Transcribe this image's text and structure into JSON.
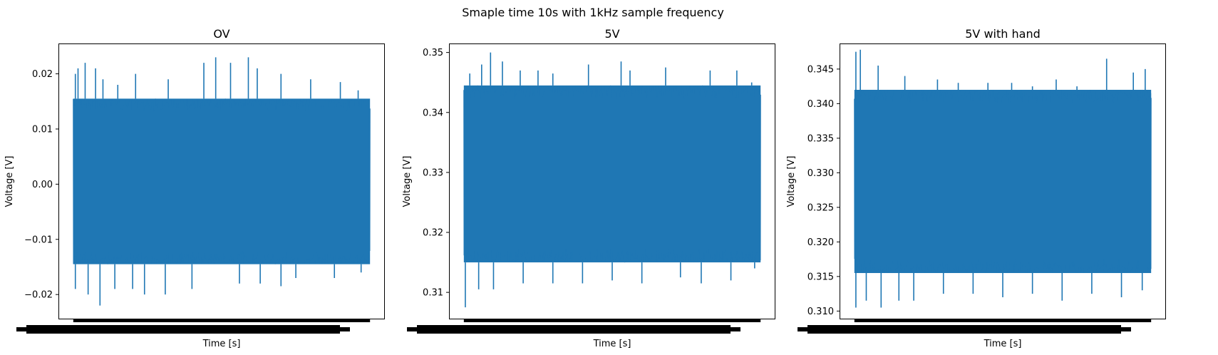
{
  "figure": {
    "suptitle": "Smaple time 10s with 1kHz sample frequency"
  },
  "chart_data": [
    {
      "type": "line",
      "title": "OV",
      "xlabel": "Time [s]",
      "ylabel": "Voltage [V]",
      "color": "#1f77b4",
      "xlim": [
        -0.5,
        10.5
      ],
      "x_range": [
        0,
        10
      ],
      "ylim": [
        -0.0245,
        0.0255
      ],
      "yticks": [
        -0.02,
        -0.01,
        0.0,
        0.01,
        0.02
      ],
      "ytick_labels": [
        "−0.02",
        "−0.01",
        "0.00",
        "0.01",
        "0.02"
      ],
      "band": [
        -0.0145,
        0.0155
      ],
      "spikes_up": [
        [
          0.07,
          0.02
        ],
        [
          0.16,
          0.021
        ],
        [
          0.4,
          0.022
        ],
        [
          0.75,
          0.021
        ],
        [
          1.0,
          0.019
        ],
        [
          1.5,
          0.018
        ],
        [
          2.1,
          0.02
        ],
        [
          3.2,
          0.019
        ],
        [
          4.4,
          0.022
        ],
        [
          4.8,
          0.023
        ],
        [
          5.3,
          0.022
        ],
        [
          5.9,
          0.023
        ],
        [
          6.2,
          0.021
        ],
        [
          7.0,
          0.02
        ],
        [
          8.0,
          0.019
        ],
        [
          9.0,
          0.0185
        ],
        [
          9.6,
          0.017
        ]
      ],
      "spikes_down": [
        [
          0.07,
          -0.019
        ],
        [
          0.5,
          -0.02
        ],
        [
          0.9,
          -0.022
        ],
        [
          1.4,
          -0.019
        ],
        [
          2.0,
          -0.019
        ],
        [
          2.4,
          -0.02
        ],
        [
          3.1,
          -0.02
        ],
        [
          4.0,
          -0.019
        ],
        [
          5.6,
          -0.018
        ],
        [
          6.3,
          -0.018
        ],
        [
          7.0,
          -0.0185
        ],
        [
          7.5,
          -0.017
        ],
        [
          8.8,
          -0.017
        ],
        [
          9.7,
          -0.016
        ]
      ]
    },
    {
      "type": "line",
      "title": "5V",
      "xlabel": "Time [s]",
      "ylabel": "Voltage [V]",
      "color": "#1f77b4",
      "xlim": [
        -0.5,
        10.5
      ],
      "x_range": [
        0,
        10
      ],
      "ylim": [
        0.3055,
        0.3515
      ],
      "yticks": [
        0.31,
        0.32,
        0.33,
        0.34,
        0.35
      ],
      "ytick_labels": [
        "0.31",
        "0.32",
        "0.33",
        "0.34",
        "0.35"
      ],
      "band": [
        0.315,
        0.3445
      ],
      "spikes_up": [
        [
          0.2,
          0.3465
        ],
        [
          0.6,
          0.348
        ],
        [
          0.9,
          0.35
        ],
        [
          1.3,
          0.3485
        ],
        [
          1.9,
          0.347
        ],
        [
          2.5,
          0.347
        ],
        [
          3.0,
          0.3465
        ],
        [
          4.2,
          0.348
        ],
        [
          5.3,
          0.3485
        ],
        [
          5.6,
          0.347
        ],
        [
          6.8,
          0.3475
        ],
        [
          8.3,
          0.347
        ],
        [
          9.2,
          0.347
        ],
        [
          9.7,
          0.345
        ]
      ],
      "spikes_down": [
        [
          0.05,
          0.3075
        ],
        [
          0.5,
          0.3105
        ],
        [
          1.0,
          0.3105
        ],
        [
          2.0,
          0.3115
        ],
        [
          3.0,
          0.3115
        ],
        [
          4.0,
          0.3115
        ],
        [
          5.0,
          0.312
        ],
        [
          6.0,
          0.3115
        ],
        [
          7.3,
          0.3125
        ],
        [
          8.0,
          0.3115
        ],
        [
          9.0,
          0.312
        ],
        [
          9.8,
          0.314
        ]
      ]
    },
    {
      "type": "line",
      "title": "5V with hand",
      "xlabel": "Time [s]",
      "ylabel": "Voltage [V]",
      "color": "#1f77b4",
      "xlim": [
        -0.5,
        10.5
      ],
      "x_range": [
        0,
        10
      ],
      "ylim": [
        0.3088,
        0.3487
      ],
      "yticks": [
        0.31,
        0.315,
        0.32,
        0.325,
        0.33,
        0.335,
        0.34,
        0.345
      ],
      "ytick_labels": [
        "0.310",
        "0.315",
        "0.320",
        "0.325",
        "0.330",
        "0.335",
        "0.340",
        "0.345"
      ],
      "band": [
        0.3155,
        0.342
      ],
      "spikes_up": [
        [
          0.05,
          0.3475
        ],
        [
          0.2,
          0.3478
        ],
        [
          0.8,
          0.3455
        ],
        [
          1.7,
          0.344
        ],
        [
          2.8,
          0.3435
        ],
        [
          3.5,
          0.343
        ],
        [
          4.5,
          0.343
        ],
        [
          5.3,
          0.343
        ],
        [
          6.0,
          0.3425
        ],
        [
          6.8,
          0.3435
        ],
        [
          7.5,
          0.3425
        ],
        [
          8.5,
          0.3465
        ],
        [
          9.4,
          0.3445
        ],
        [
          9.8,
          0.345
        ]
      ],
      "spikes_down": [
        [
          0.05,
          0.3105
        ],
        [
          0.4,
          0.3115
        ],
        [
          0.9,
          0.3105
        ],
        [
          1.5,
          0.3115
        ],
        [
          2.0,
          0.3115
        ],
        [
          3.0,
          0.3125
        ],
        [
          4.0,
          0.3125
        ],
        [
          5.0,
          0.312
        ],
        [
          6.0,
          0.3125
        ],
        [
          7.0,
          0.3115
        ],
        [
          8.0,
          0.3125
        ],
        [
          9.0,
          0.312
        ],
        [
          9.7,
          0.313
        ]
      ]
    }
  ]
}
